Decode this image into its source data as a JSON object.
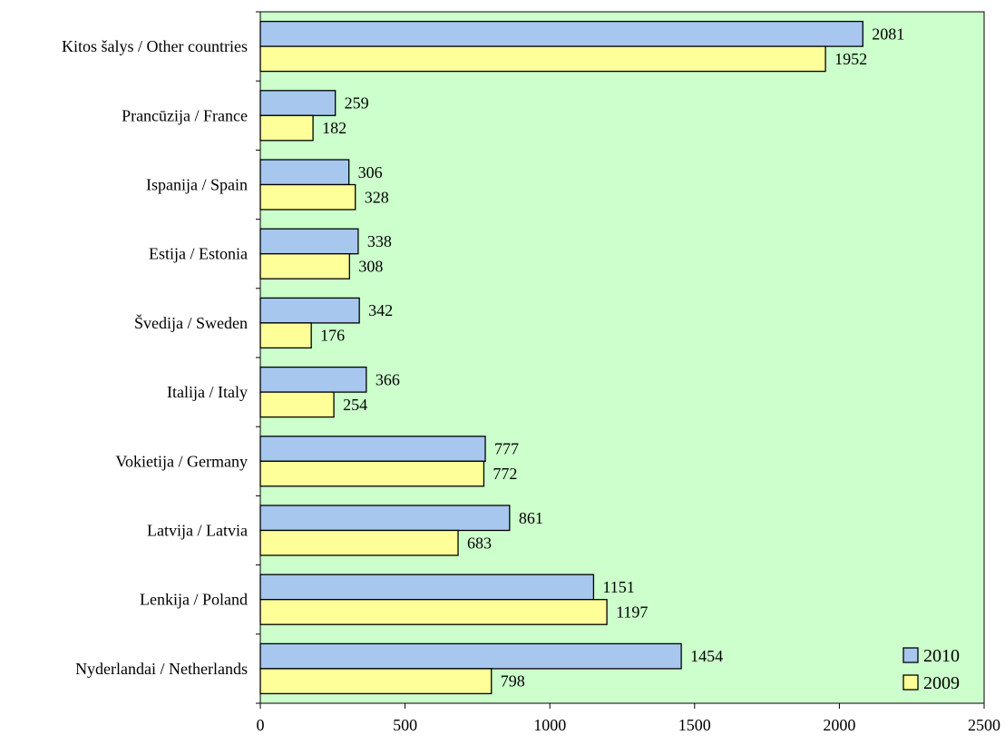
{
  "chart_data": {
    "type": "bar",
    "orientation": "horizontal",
    "categories": [
      "Kitos šalys / Other countries",
      "Prancūzija / France",
      "Ispanija / Spain",
      "Estija / Estonia",
      "Švedija / Sweden",
      "Italija / Italy",
      "Vokietija / Germany",
      "Latvija / Latvia",
      "Lenkija / Poland",
      "Nyderlandai / Netherlands"
    ],
    "series": [
      {
        "name": "2010",
        "color": "#a7c7ee",
        "values": [
          2081,
          259,
          306,
          338,
          342,
          366,
          777,
          861,
          1151,
          1454
        ]
      },
      {
        "name": "2009",
        "color": "#ffff99",
        "values": [
          1952,
          182,
          328,
          308,
          176,
          254,
          772,
          683,
          1197,
          798
        ]
      }
    ],
    "xlim": [
      0,
      2500
    ],
    "xticks": [
      "0",
      "500",
      "1000",
      "1500",
      "2000",
      "2500"
    ],
    "plot_background": "#ccffcc",
    "legend_position": "bottom-right",
    "grid": false,
    "data_labels": true
  }
}
